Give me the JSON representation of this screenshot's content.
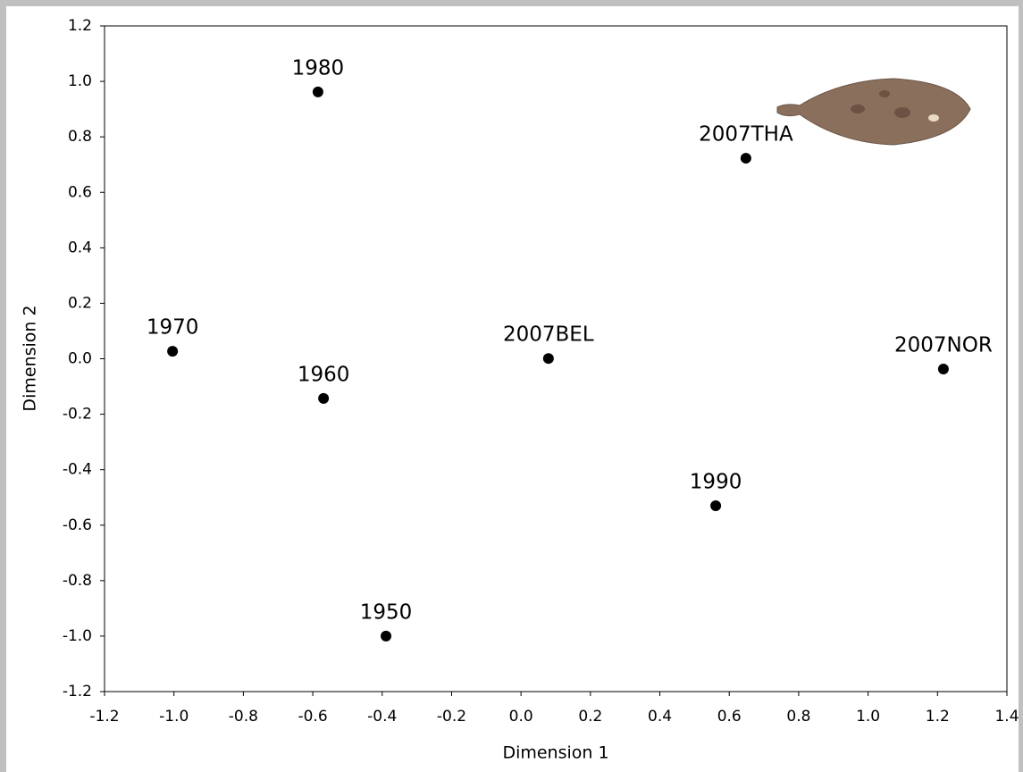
{
  "chart_data": {
    "type": "scatter",
    "xlabel": "Dimension 1",
    "ylabel": "Dimension 2",
    "labels": [
      "1980",
      "2007THA",
      "1970",
      "2007BEL",
      "2007NOR",
      "1960",
      "1990",
      "1950"
    ],
    "x": [
      -0.585,
      0.648,
      -1.004,
      0.079,
      1.217,
      -0.569,
      0.561,
      -0.389
    ],
    "values": [
      0.962,
      0.723,
      0.027,
      0.001,
      -0.037,
      -0.143,
      -0.53,
      -1.0
    ],
    "color": "#000000",
    "xlim": [
      -1.2,
      1.4
    ],
    "xticks": [
      -1.2,
      {
        "value": -1.0,
        "label": "-1.0"
      },
      -0.8,
      -0.6,
      -0.4,
      -0.2,
      {
        "value": 0.0,
        "label": "0.0"
      },
      0.2,
      0.4,
      0.6,
      0.8,
      {
        "value": 1.0,
        "label": "1.0"
      },
      1.2,
      1.4
    ],
    "ylim": [
      -1.2,
      1.2
    ],
    "yticks": [
      -1.2,
      {
        "value": -1.0,
        "label": "-1.0"
      },
      -0.8,
      -0.6,
      -0.4,
      -0.2,
      {
        "value": 0.0,
        "label": "0.0"
      },
      0.2,
      0.4,
      0.6,
      0.8,
      {
        "value": 1.0,
        "label": "1.0"
      },
      1.2
    ],
    "grid": false
  }
}
